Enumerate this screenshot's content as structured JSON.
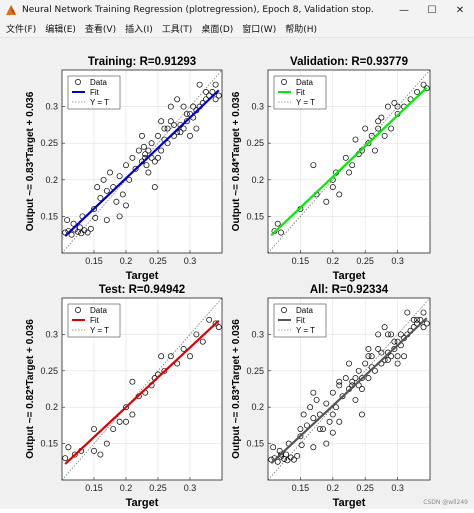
{
  "window": {
    "title": "Neural Network Training Regression (plotregression), Epoch 8, Validation stop.",
    "minimize": "—",
    "maximize": "☐",
    "close": "✕",
    "icon": "matlab-figure-icon"
  },
  "menu": [
    "文件(F)",
    "编辑(E)",
    "查看(V)",
    "插入(I)",
    "工具(T)",
    "桌面(D)",
    "窗口(W)",
    "帮助(H)"
  ],
  "legend_labels": {
    "data": "Data",
    "fit": "Fit",
    "identity": "Y = T"
  },
  "watermark": "CSDN @wll249",
  "chart_data": [
    {
      "type": "scatter",
      "title": "Training: R=0.91293",
      "xlabel": "Target",
      "ylabel": "Output ~= 0.83*Target + 0.036",
      "xticks": [
        "0.15",
        "0.2",
        "0.25",
        "0.3"
      ],
      "yticks": [
        "0.15",
        "0.2",
        "0.25",
        "0.3"
      ],
      "xlim": [
        0.1,
        0.35
      ],
      "ylim": [
        0.1,
        0.35
      ],
      "fit_color": "#0000cc",
      "fit": {
        "slope": 0.83,
        "intercept": 0.036
      },
      "legend": "top-left",
      "points": [
        [
          0.105,
          0.128
        ],
        [
          0.11,
          0.13
        ],
        [
          0.115,
          0.125
        ],
        [
          0.12,
          0.132
        ],
        [
          0.125,
          0.129
        ],
        [
          0.128,
          0.135
        ],
        [
          0.13,
          0.127
        ],
        [
          0.135,
          0.131
        ],
        [
          0.14,
          0.128
        ],
        [
          0.145,
          0.133
        ],
        [
          0.108,
          0.145
        ],
        [
          0.118,
          0.14
        ],
        [
          0.132,
          0.15
        ],
        [
          0.152,
          0.148
        ],
        [
          0.15,
          0.16
        ],
        [
          0.16,
          0.175
        ],
        [
          0.155,
          0.19
        ],
        [
          0.165,
          0.2
        ],
        [
          0.17,
          0.185
        ],
        [
          0.175,
          0.21
        ],
        [
          0.18,
          0.19
        ],
        [
          0.185,
          0.17
        ],
        [
          0.19,
          0.205
        ],
        [
          0.195,
          0.18
        ],
        [
          0.2,
          0.22
        ],
        [
          0.205,
          0.2
        ],
        [
          0.21,
          0.23
        ],
        [
          0.215,
          0.215
        ],
        [
          0.22,
          0.24
        ],
        [
          0.225,
          0.225
        ],
        [
          0.23,
          0.235
        ],
        [
          0.235,
          0.21
        ],
        [
          0.24,
          0.25
        ],
        [
          0.245,
          0.225
        ],
        [
          0.25,
          0.26
        ],
        [
          0.255,
          0.24
        ],
        [
          0.26,
          0.27
        ],
        [
          0.265,
          0.25
        ],
        [
          0.27,
          0.28
        ],
        [
          0.275,
          0.26
        ],
        [
          0.28,
          0.265
        ],
        [
          0.285,
          0.275
        ],
        [
          0.29,
          0.27
        ],
        [
          0.295,
          0.28
        ],
        [
          0.3,
          0.29
        ],
        [
          0.305,
          0.285
        ],
        [
          0.31,
          0.295
        ],
        [
          0.315,
          0.3
        ],
        [
          0.32,
          0.305
        ],
        [
          0.325,
          0.31
        ],
        [
          0.33,
          0.315
        ],
        [
          0.335,
          0.32
        ],
        [
          0.34,
          0.31
        ],
        [
          0.345,
          0.315
        ],
        [
          0.27,
          0.3
        ],
        [
          0.28,
          0.31
        ],
        [
          0.3,
          0.26
        ],
        [
          0.255,
          0.28
        ],
        [
          0.29,
          0.3
        ],
        [
          0.31,
          0.27
        ],
        [
          0.26,
          0.255
        ],
        [
          0.285,
          0.265
        ],
        [
          0.275,
          0.275
        ],
        [
          0.295,
          0.29
        ],
        [
          0.305,
          0.3
        ],
        [
          0.225,
          0.26
        ],
        [
          0.245,
          0.19
        ],
        [
          0.19,
          0.15
        ],
        [
          0.17,
          0.145
        ],
        [
          0.2,
          0.165
        ],
        [
          0.315,
          0.33
        ],
        [
          0.325,
          0.32
        ],
        [
          0.34,
          0.33
        ],
        [
          0.23,
          0.23
        ],
        [
          0.235,
          0.24
        ],
        [
          0.24,
          0.23
        ],
        [
          0.228,
          0.245
        ],
        [
          0.232,
          0.22
        ],
        [
          0.25,
          0.23
        ],
        [
          0.265,
          0.27
        ]
      ]
    },
    {
      "type": "scatter",
      "title": "Validation: R=0.93779",
      "xlabel": "Target",
      "ylabel": "Output ~= 0.84*Target + 0.036",
      "xticks": [
        "0.15",
        "0.2",
        "0.25",
        "0.3"
      ],
      "yticks": [
        "0.15",
        "0.2",
        "0.25",
        "0.3"
      ],
      "xlim": [
        0.1,
        0.35
      ],
      "ylim": [
        0.1,
        0.35
      ],
      "fit_color": "#00ee00",
      "fit": {
        "slope": 0.84,
        "intercept": 0.036
      },
      "legend": "top-left",
      "points": [
        [
          0.11,
          0.13
        ],
        [
          0.115,
          0.14
        ],
        [
          0.12,
          0.128
        ],
        [
          0.15,
          0.16
        ],
        [
          0.17,
          0.22
        ],
        [
          0.175,
          0.18
        ],
        [
          0.19,
          0.17
        ],
        [
          0.2,
          0.2
        ],
        [
          0.205,
          0.21
        ],
        [
          0.21,
          0.18
        ],
        [
          0.22,
          0.23
        ],
        [
          0.225,
          0.21
        ],
        [
          0.23,
          0.22
        ],
        [
          0.24,
          0.235
        ],
        [
          0.245,
          0.24
        ],
        [
          0.25,
          0.27
        ],
        [
          0.255,
          0.25
        ],
        [
          0.26,
          0.26
        ],
        [
          0.265,
          0.24
        ],
        [
          0.27,
          0.28
        ],
        [
          0.28,
          0.26
        ],
        [
          0.285,
          0.3
        ],
        [
          0.29,
          0.27
        ],
        [
          0.3,
          0.29
        ],
        [
          0.31,
          0.3
        ],
        [
          0.32,
          0.31
        ],
        [
          0.33,
          0.32
        ],
        [
          0.34,
          0.33
        ],
        [
          0.345,
          0.325
        ],
        [
          0.295,
          0.305
        ],
        [
          0.275,
          0.285
        ],
        [
          0.235,
          0.255
        ],
        [
          0.27,
          0.27
        ],
        [
          0.3,
          0.3
        ],
        [
          0.2,
          0.19
        ]
      ]
    },
    {
      "type": "scatter",
      "title": "Test: R=0.94942",
      "xlabel": "Target",
      "ylabel": "Output ~= 0.82*Target + 0.036",
      "xticks": [
        "0.15",
        "0.2",
        "0.25",
        "0.3"
      ],
      "yticks": [
        "0.15",
        "0.2",
        "0.25",
        "0.3"
      ],
      "xlim": [
        0.1,
        0.35
      ],
      "ylim": [
        0.1,
        0.35
      ],
      "fit_color": "#dd0000",
      "fit": {
        "slope": 0.82,
        "intercept": 0.036
      },
      "legend": "top-left",
      "points": [
        [
          0.105,
          0.13
        ],
        [
          0.11,
          0.145
        ],
        [
          0.12,
          0.135
        ],
        [
          0.13,
          0.14
        ],
        [
          0.15,
          0.14
        ],
        [
          0.16,
          0.135
        ],
        [
          0.17,
          0.15
        ],
        [
          0.18,
          0.17
        ],
        [
          0.19,
          0.18
        ],
        [
          0.2,
          0.2
        ],
        [
          0.21,
          0.19
        ],
        [
          0.22,
          0.215
        ],
        [
          0.23,
          0.22
        ],
        [
          0.24,
          0.23
        ],
        [
          0.245,
          0.24
        ],
        [
          0.25,
          0.245
        ],
        [
          0.26,
          0.25
        ],
        [
          0.27,
          0.27
        ],
        [
          0.28,
          0.26
        ],
        [
          0.29,
          0.28
        ],
        [
          0.3,
          0.27
        ],
        [
          0.31,
          0.3
        ],
        [
          0.32,
          0.29
        ],
        [
          0.33,
          0.32
        ],
        [
          0.34,
          0.315
        ],
        [
          0.345,
          0.31
        ],
        [
          0.21,
          0.235
        ],
        [
          0.255,
          0.27
        ],
        [
          0.2,
          0.18
        ],
        [
          0.15,
          0.17
        ]
      ]
    },
    {
      "type": "scatter",
      "title": "All: R=0.92334",
      "xlabel": "Target",
      "ylabel": "Output ~= 0.83*Target + 0.036",
      "xticks": [
        "0.15",
        "0.2",
        "0.25",
        "0.3"
      ],
      "yticks": [
        "0.15",
        "0.2",
        "0.25",
        "0.3"
      ],
      "xlim": [
        0.1,
        0.35
      ],
      "ylim": [
        0.1,
        0.35
      ],
      "fit_color": "#555555",
      "fit": {
        "slope": 0.83,
        "intercept": 0.036
      },
      "legend": "top-left",
      "points": [
        [
          0.105,
          0.128
        ],
        [
          0.11,
          0.13
        ],
        [
          0.115,
          0.125
        ],
        [
          0.12,
          0.132
        ],
        [
          0.125,
          0.129
        ],
        [
          0.128,
          0.135
        ],
        [
          0.13,
          0.127
        ],
        [
          0.135,
          0.131
        ],
        [
          0.14,
          0.128
        ],
        [
          0.145,
          0.133
        ],
        [
          0.108,
          0.145
        ],
        [
          0.118,
          0.14
        ],
        [
          0.132,
          0.15
        ],
        [
          0.152,
          0.148
        ],
        [
          0.15,
          0.16
        ],
        [
          0.16,
          0.175
        ],
        [
          0.155,
          0.19
        ],
        [
          0.165,
          0.2
        ],
        [
          0.17,
          0.185
        ],
        [
          0.175,
          0.21
        ],
        [
          0.18,
          0.19
        ],
        [
          0.185,
          0.17
        ],
        [
          0.19,
          0.205
        ],
        [
          0.195,
          0.18
        ],
        [
          0.2,
          0.22
        ],
        [
          0.205,
          0.2
        ],
        [
          0.21,
          0.23
        ],
        [
          0.215,
          0.215
        ],
        [
          0.22,
          0.24
        ],
        [
          0.225,
          0.225
        ],
        [
          0.23,
          0.235
        ],
        [
          0.235,
          0.21
        ],
        [
          0.24,
          0.25
        ],
        [
          0.245,
          0.225
        ],
        [
          0.25,
          0.26
        ],
        [
          0.255,
          0.24
        ],
        [
          0.26,
          0.27
        ],
        [
          0.265,
          0.25
        ],
        [
          0.27,
          0.28
        ],
        [
          0.275,
          0.26
        ],
        [
          0.28,
          0.265
        ],
        [
          0.285,
          0.275
        ],
        [
          0.29,
          0.27
        ],
        [
          0.295,
          0.28
        ],
        [
          0.3,
          0.29
        ],
        [
          0.305,
          0.285
        ],
        [
          0.31,
          0.295
        ],
        [
          0.315,
          0.3
        ],
        [
          0.32,
          0.305
        ],
        [
          0.325,
          0.31
        ],
        [
          0.33,
          0.315
        ],
        [
          0.335,
          0.32
        ],
        [
          0.34,
          0.31
        ],
        [
          0.345,
          0.315
        ],
        [
          0.27,
          0.3
        ],
        [
          0.28,
          0.31
        ],
        [
          0.3,
          0.26
        ],
        [
          0.255,
          0.28
        ],
        [
          0.29,
          0.3
        ],
        [
          0.31,
          0.27
        ],
        [
          0.26,
          0.255
        ],
        [
          0.285,
          0.265
        ],
        [
          0.275,
          0.275
        ],
        [
          0.295,
          0.29
        ],
        [
          0.305,
          0.3
        ],
        [
          0.225,
          0.26
        ],
        [
          0.245,
          0.19
        ],
        [
          0.19,
          0.15
        ],
        [
          0.17,
          0.145
        ],
        [
          0.2,
          0.165
        ],
        [
          0.315,
          0.33
        ],
        [
          0.325,
          0.32
        ],
        [
          0.34,
          0.33
        ],
        [
          0.23,
          0.23
        ],
        [
          0.235,
          0.24
        ],
        [
          0.24,
          0.23
        ],
        [
          0.17,
          0.22
        ],
        [
          0.285,
          0.3
        ],
        [
          0.2,
          0.19
        ],
        [
          0.21,
          0.18
        ],
        [
          0.33,
          0.32
        ],
        [
          0.15,
          0.17
        ],
        [
          0.12,
          0.135
        ],
        [
          0.18,
          0.17
        ],
        [
          0.255,
          0.27
        ],
        [
          0.21,
          0.235
        ],
        [
          0.3,
          0.27
        ],
        [
          0.245,
          0.24
        ]
      ]
    }
  ]
}
